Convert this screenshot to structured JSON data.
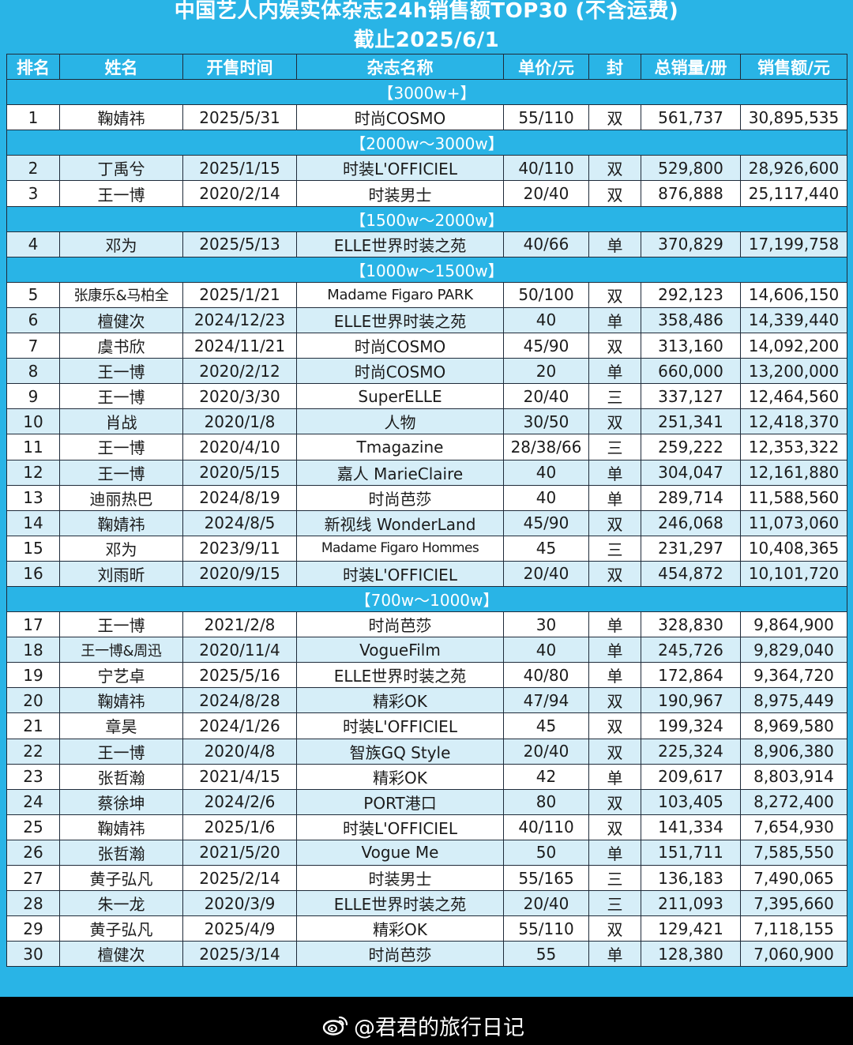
{
  "title": "中国艺人内娱实体杂志24h销售额TOP30 (不含运费)",
  "subtitle": "截止2025/6/1",
  "headers": [
    "排名",
    "姓名",
    "开售时间",
    "杂志名称",
    "单价/元",
    "封",
    "总销量/册",
    "销售额/元"
  ],
  "sections": [
    {
      "band": "【3000w+】",
      "rows": [
        [
          "1",
          "鞠婧祎",
          "2025/5/31",
          "时尚COSMO",
          "55/110",
          "双",
          "561,737",
          "30,895,535"
        ]
      ]
    },
    {
      "band": "【2000w～3000w】",
      "rows": [
        [
          "2",
          "丁禹兮",
          "2025/1/15",
          "时装L'OFFICIEL",
          "40/110",
          "双",
          "529,800",
          "28,926,600"
        ],
        [
          "3",
          "王一博",
          "2020/2/14",
          "时装男士",
          "20/40",
          "双",
          "876,888",
          "25,117,440"
        ]
      ]
    },
    {
      "band": "【1500w～2000w】",
      "rows": [
        [
          "4",
          "邓为",
          "2025/5/13",
          "ELLE世界时装之苑",
          "40/66",
          "单",
          "370,829",
          "17,199,758"
        ]
      ]
    },
    {
      "band": "【1000w～1500w】",
      "rows": [
        [
          "5",
          "张康乐&马柏全",
          "2025/1/21",
          "Madame Figaro PARK",
          "50/100",
          "双",
          "292,123",
          "14,606,150"
        ],
        [
          "6",
          "檀健次",
          "2024/12/23",
          "ELLE世界时装之苑",
          "40",
          "单",
          "358,486",
          "14,339,440"
        ],
        [
          "7",
          "虞书欣",
          "2024/11/21",
          "时尚COSMO",
          "45/90",
          "双",
          "313,160",
          "14,092,200"
        ],
        [
          "8",
          "王一博",
          "2020/2/12",
          "时尚COSMO",
          "20",
          "单",
          "660,000",
          "13,200,000"
        ],
        [
          "9",
          "王一博",
          "2020/3/30",
          "SuperELLE",
          "20/40",
          "三",
          "337,127",
          "12,464,560"
        ],
        [
          "10",
          "肖战",
          "2020/1/8",
          "人物",
          "30/50",
          "双",
          "251,341",
          "12,418,370"
        ],
        [
          "11",
          "王一博",
          "2020/4/10",
          "Tmagazine",
          "28/38/66",
          "三",
          "259,222",
          "12,353,322"
        ],
        [
          "12",
          "王一博",
          "2020/5/15",
          "嘉人 MarieClaire",
          "40",
          "单",
          "304,047",
          "12,161,880"
        ],
        [
          "13",
          "迪丽热巴",
          "2024/8/19",
          "时尚芭莎",
          "40",
          "单",
          "289,714",
          "11,588,560"
        ],
        [
          "14",
          "鞠婧祎",
          "2024/8/5",
          "新视线 WonderLand",
          "45/90",
          "双",
          "246,068",
          "11,073,060"
        ],
        [
          "15",
          "邓为",
          "2023/9/11",
          "Madame Figaro Hommes",
          "45",
          "三",
          "231,297",
          "10,408,365"
        ],
        [
          "16",
          "刘雨昕",
          "2020/9/15",
          "时装L'OFFICIEL",
          "20/40",
          "双",
          "454,872",
          "10,101,720"
        ]
      ]
    },
    {
      "band": "【700w～1000w】",
      "rows": [
        [
          "17",
          "王一博",
          "2021/2/8",
          "时尚芭莎",
          "30",
          "单",
          "328,830",
          "9,864,900"
        ],
        [
          "18",
          "王一博&周迅",
          "2020/11/4",
          "VogueFilm",
          "40",
          "单",
          "245,726",
          "9,829,040"
        ],
        [
          "19",
          "宁艺卓",
          "2025/5/16",
          "ELLE世界时装之苑",
          "40/80",
          "单",
          "172,864",
          "9,364,720"
        ],
        [
          "20",
          "鞠婧祎",
          "2024/8/28",
          "精彩OK",
          "47/94",
          "双",
          "190,967",
          "8,975,449"
        ],
        [
          "21",
          "章昊",
          "2024/1/26",
          "时装L'OFFICIEL",
          "45",
          "双",
          "199,324",
          "8,969,580"
        ],
        [
          "22",
          "王一博",
          "2020/4/8",
          "智族GQ Style",
          "20/40",
          "双",
          "225,324",
          "8,906,380"
        ],
        [
          "23",
          "张哲瀚",
          "2021/4/15",
          "精彩OK",
          "42",
          "单",
          "209,617",
          "8,803,914"
        ],
        [
          "24",
          "蔡徐坤",
          "2024/2/6",
          "PORT港口",
          "80",
          "双",
          "103,405",
          "8,272,400"
        ],
        [
          "25",
          "鞠婧祎",
          "2025/1/6",
          "时装L'OFFICIEL",
          "40/110",
          "双",
          "141,334",
          "7,654,930"
        ],
        [
          "26",
          "张哲瀚",
          "2021/5/20",
          "Vogue Me",
          "50",
          "单",
          "151,711",
          "7,585,550"
        ],
        [
          "27",
          "黄子弘凡",
          "2025/2/14",
          "时装男士",
          "55/165",
          "三",
          "136,183",
          "7,490,065"
        ],
        [
          "28",
          "朱一龙",
          "2020/3/9",
          "ELLE世界时装之苑",
          "20/40",
          "三",
          "211,093",
          "7,395,660"
        ],
        [
          "29",
          "黄子弘凡",
          "2025/4/9",
          "精彩OK",
          "55/110",
          "双",
          "129,421",
          "7,118,155"
        ],
        [
          "30",
          "檀健次",
          "2025/3/14",
          "时尚芭莎",
          "55",
          "单",
          "128,380",
          "7,060,900"
        ]
      ]
    }
  ],
  "watermark": {
    "text": "@君君的旅行日记",
    "icon": "weibo-logo"
  },
  "colors": {
    "header_bg": "#29b4e6",
    "band_bg": "#29b4e6",
    "row_alt_bg": "#d6eef8",
    "row_bg": "#ffffff"
  }
}
